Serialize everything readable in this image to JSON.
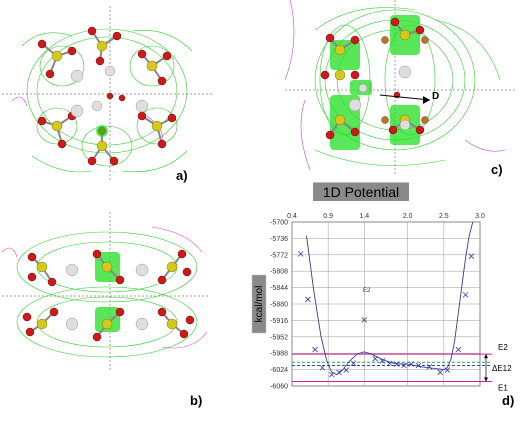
{
  "figure": {
    "panel_labels": {
      "a": "a)",
      "b": "b)",
      "c": "c)",
      "d": "d)"
    },
    "panel_c_arrow_label": "D",
    "colors": {
      "contour_green": "#33cc33",
      "contour_magenta": "#d040d0",
      "sulfur_yellow": "#d4c81a",
      "oxygen_red": "#cc1a1a",
      "ion_gray": "#d8d8d8",
      "bright_green": "#22e022"
    }
  },
  "chart_data": {
    "type": "line",
    "title": "1D Potential",
    "ylabel": "kcal/mol",
    "xlabel": "",
    "xlim": [
      0.4,
      3.0
    ],
    "ylim": [
      -6060,
      -5700
    ],
    "x_ticks": [
      "0.4",
      "0.9",
      "1.4",
      "2.0",
      "2.5",
      "3.0"
    ],
    "x_tick_values": [
      0.4,
      0.9,
      1.4,
      2.0,
      2.5,
      3.0
    ],
    "y_ticks": [
      "-5700",
      "-5736",
      "-5772",
      "-5808",
      "-5844",
      "-5880",
      "-5916",
      "-5952",
      "-5988",
      "-6024",
      "-6060"
    ],
    "y_tick_values": [
      -5700,
      -5736,
      -5772,
      -5808,
      -5844,
      -5880,
      -5916,
      -5952,
      -5988,
      -6024,
      -6060
    ],
    "grid": true,
    "series": [
      {
        "kind": "curve",
        "color": "#3a3aa0",
        "x": [
          0.6,
          0.7,
          0.8,
          0.88,
          0.95,
          1.02,
          1.1,
          1.2,
          1.3,
          1.4,
          1.5,
          1.6,
          1.7,
          1.8,
          1.9,
          2.0,
          2.1,
          2.2,
          2.3,
          2.4,
          2.5,
          2.55,
          2.6,
          2.65,
          2.7,
          2.75,
          2.8,
          2.85,
          2.9
        ],
        "y": [
          -5730,
          -5850,
          -5950,
          -6005,
          -6030,
          -6035,
          -6025,
          -6005,
          -5990,
          -5985,
          -5990,
          -5998,
          -6005,
          -6010,
          -6012,
          -6012,
          -6015,
          -6018,
          -6020,
          -6022,
          -6024,
          -6020,
          -6000,
          -5960,
          -5900,
          -5840,
          -5780,
          -5730,
          -5700
        ]
      },
      {
        "kind": "markers",
        "marker": "x",
        "color": "#3a3aa0",
        "x": [
          0.52,
          0.62,
          0.72,
          0.82,
          0.95,
          1.05,
          1.15,
          1.25,
          1.4,
          1.55,
          1.65,
          1.75,
          1.85,
          1.95,
          2.05,
          2.15,
          2.3,
          2.45,
          2.55,
          2.7,
          2.8,
          2.88
        ],
        "y": [
          -5770,
          -5870,
          -5980,
          -6020,
          -6035,
          -6030,
          -6025,
          -6010,
          -5915,
          -6000,
          -6005,
          -6010,
          -6012,
          -6015,
          -6012,
          -6015,
          -6018,
          -6030,
          -6025,
          -5980,
          -5860,
          -5775
        ]
      }
    ],
    "reference_lines": [
      {
        "label": "E2",
        "y": -5990,
        "color": "#cc2299"
      },
      {
        "label": "",
        "y": -6008,
        "color": "#22aa44",
        "dashed": true
      },
      {
        "label": "",
        "y": -6015,
        "color": "#2244cc",
        "dashed": true
      },
      {
        "label": "E1",
        "y": -6050,
        "color": "#cc2299"
      }
    ],
    "annotations": {
      "inner_label": "E2",
      "delta_label": "ΔE12",
      "delta_between": [
        "E2",
        "E1"
      ]
    }
  }
}
